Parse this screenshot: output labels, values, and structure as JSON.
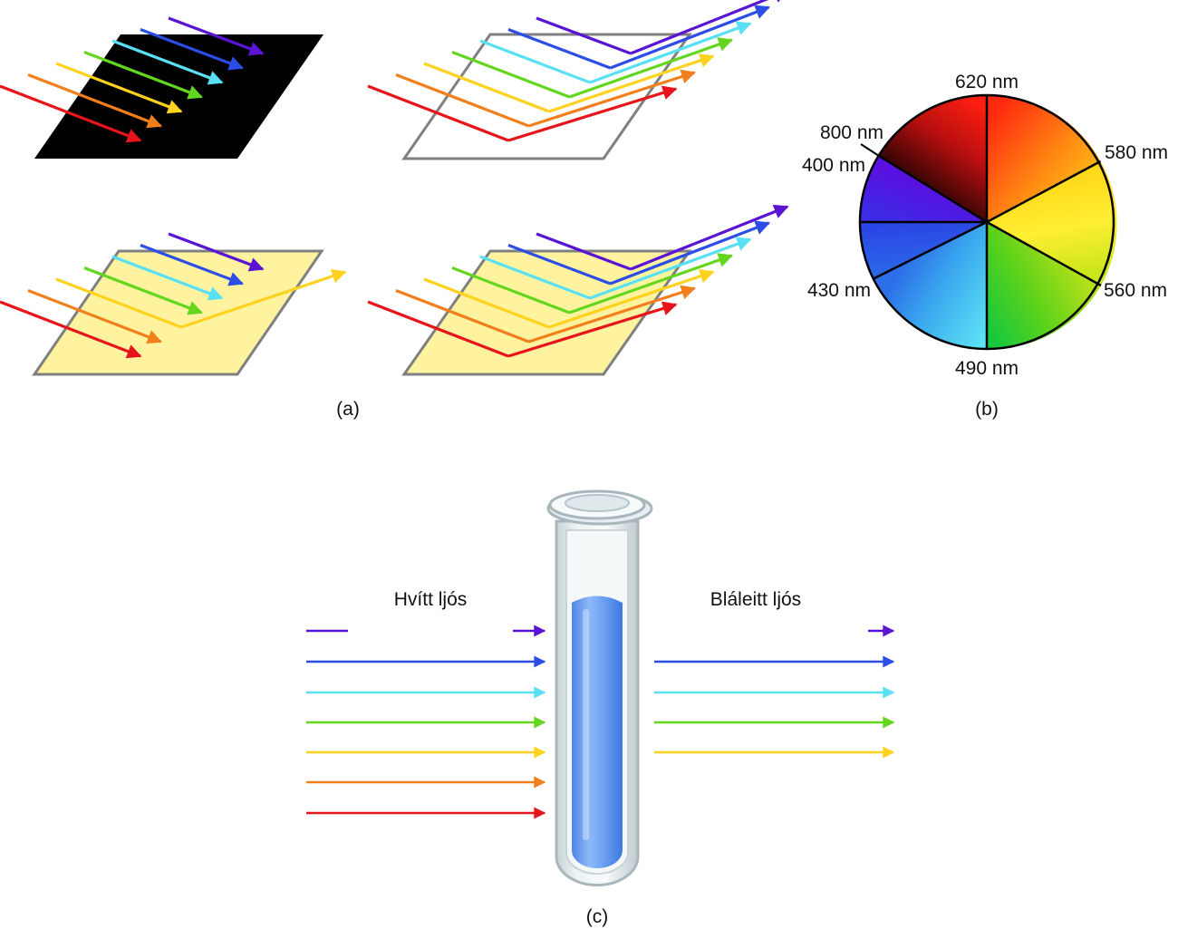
{
  "spectrum_colors": {
    "red": "#e8141b",
    "orange": "#f07f1c",
    "yellow": "#ffd21f",
    "green": "#64d61f",
    "cyan": "#5ae0f5",
    "blue": "#2d4ee6",
    "violet": "#5a14d4"
  },
  "panel_a": {
    "caption": "(a)",
    "surfaces": [
      {
        "name": "black-surface",
        "fill": "#000000",
        "reflects": []
      },
      {
        "name": "white-surface",
        "fill": "#ffffff",
        "reflects": [
          "red",
          "orange",
          "yellow",
          "green",
          "cyan",
          "blue",
          "violet"
        ]
      },
      {
        "name": "yellow-surface",
        "fill": "#fff3a0",
        "reflects": [
          "yellow"
        ]
      },
      {
        "name": "yellow-surface-white-light",
        "fill": "#fff3a0",
        "reflects": [
          "red",
          "orange",
          "yellow",
          "green",
          "cyan",
          "blue",
          "violet"
        ]
      }
    ]
  },
  "panel_b": {
    "caption": "(b)",
    "wheel_labels": {
      "nm620": "620 nm",
      "nm580": "580 nm",
      "nm560": "560 nm",
      "nm490": "490 nm",
      "nm430": "430 nm",
      "nm400": "400 nm",
      "nm800": "800 nm"
    }
  },
  "panel_c": {
    "caption": "(c)",
    "incoming_label": "Hvítt ljós",
    "outgoing_label": "Bláleitt ljós",
    "incoming_colors": [
      "violet",
      "blue",
      "cyan",
      "green",
      "yellow",
      "orange",
      "red"
    ],
    "outgoing_colors": [
      "violet",
      "blue",
      "cyan",
      "green",
      "yellow"
    ],
    "solution_color": "#5b95f0"
  }
}
